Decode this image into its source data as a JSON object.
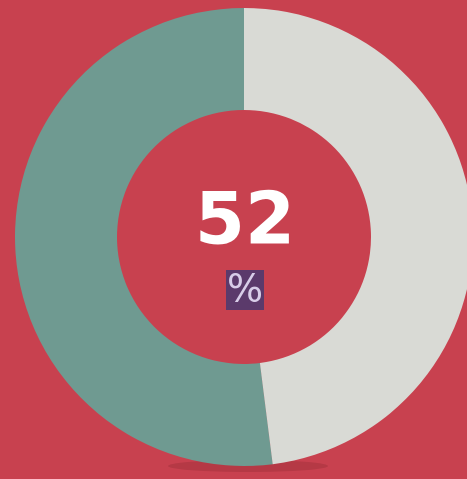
{
  "chart_data": {
    "type": "donut",
    "values": [
      52,
      48
    ],
    "colors": [
      "#6f9a91",
      "#d9dad5"
    ],
    "background": "#c8414f",
    "center_unit": "%"
  }
}
